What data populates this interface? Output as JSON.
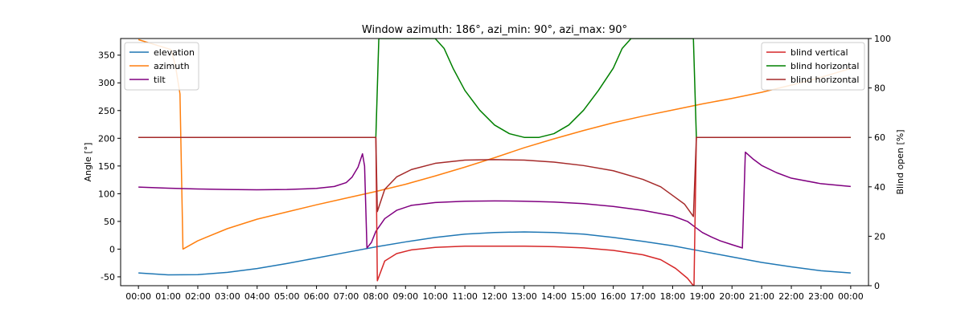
{
  "chart_data": {
    "type": "line",
    "title": "Window azimuth: 186°, azi_min: 90°, azi_max: 90°",
    "xlabel": "",
    "ylabel_left": "Angle [°]",
    "ylabel_right": "Blind open [%]",
    "x_tick_labels": [
      "00:00",
      "01:00",
      "02:00",
      "03:00",
      "04:00",
      "05:00",
      "06:00",
      "07:00",
      "08:00",
      "09:00",
      "10:00",
      "11:00",
      "12:00",
      "13:00",
      "14:00",
      "15:00",
      "16:00",
      "17:00",
      "18:00",
      "19:00",
      "20:00",
      "21:00",
      "22:00",
      "23:00",
      "00:00"
    ],
    "xlim_hours": [
      -0.6,
      24.6
    ],
    "ylim_left": [
      -66,
      380
    ],
    "ylim_right": [
      0,
      100
    ],
    "yticks_left": [
      -50,
      0,
      50,
      100,
      150,
      200,
      250,
      300,
      350
    ],
    "yticks_right": [
      0,
      20,
      40,
      60,
      80,
      100
    ],
    "grid": false,
    "legend_left": {
      "placement": "top-left",
      "entries": [
        "elevation",
        "azimuth",
        "tilt"
      ]
    },
    "legend_right": {
      "placement": "top-right",
      "entries": [
        "blind vertical",
        "blind horizontal",
        "blind horizontal"
      ]
    },
    "series": [
      {
        "name": "elevation",
        "axis": "left",
        "color": "#1f77b4",
        "points": [
          [
            0,
            -43
          ],
          [
            1,
            -46.5
          ],
          [
            2,
            -46
          ],
          [
            3,
            -42
          ],
          [
            4,
            -35
          ],
          [
            5,
            -26
          ],
          [
            6,
            -16
          ],
          [
            7,
            -6
          ],
          [
            8,
            4
          ],
          [
            9,
            13
          ],
          [
            10,
            21
          ],
          [
            11,
            27
          ],
          [
            12,
            30
          ],
          [
            13,
            31
          ],
          [
            14,
            30
          ],
          [
            15,
            27
          ],
          [
            16,
            21
          ],
          [
            17,
            14
          ],
          [
            18,
            6
          ],
          [
            19,
            -4
          ],
          [
            20,
            -14
          ],
          [
            21,
            -24
          ],
          [
            22,
            -32
          ],
          [
            23,
            -39
          ],
          [
            24,
            -43
          ]
        ]
      },
      {
        "name": "azimuth",
        "axis": "left",
        "color": "#ff7f0e",
        "points": [
          [
            0,
            378
          ],
          [
            1.1,
            360
          ],
          [
            1.25,
            330
          ],
          [
            1.4,
            280
          ],
          [
            1.5,
            0
          ],
          [
            2,
            15
          ],
          [
            3,
            37
          ],
          [
            4,
            54
          ],
          [
            5,
            67
          ],
          [
            6,
            80
          ],
          [
            7,
            92
          ],
          [
            8,
            104
          ],
          [
            9,
            117
          ],
          [
            10,
            132
          ],
          [
            11,
            148
          ],
          [
            12,
            165
          ],
          [
            13,
            183
          ],
          [
            14,
            199
          ],
          [
            15,
            214
          ],
          [
            16,
            228
          ],
          [
            17,
            240
          ],
          [
            18,
            251
          ],
          [
            19,
            262
          ],
          [
            20,
            272
          ],
          [
            21,
            283
          ],
          [
            22,
            296
          ],
          [
            23,
            310
          ],
          [
            24,
            326
          ]
        ]
      },
      {
        "name": "tilt",
        "axis": "left",
        "color": "#800080",
        "points": [
          [
            0,
            112
          ],
          [
            1,
            110
          ],
          [
            2,
            108.5
          ],
          [
            3,
            107.5
          ],
          [
            4,
            107
          ],
          [
            5,
            107.5
          ],
          [
            6,
            109.5
          ],
          [
            6.6,
            113
          ],
          [
            7,
            120
          ],
          [
            7.2,
            130
          ],
          [
            7.4,
            148
          ],
          [
            7.55,
            172
          ],
          [
            7.62,
            150
          ],
          [
            7.7,
            2
          ],
          [
            7.85,
            12
          ],
          [
            8.0,
            32
          ],
          [
            8.3,
            55
          ],
          [
            8.7,
            70
          ],
          [
            9.2,
            79
          ],
          [
            10,
            84
          ],
          [
            11,
            86.5
          ],
          [
            12,
            87
          ],
          [
            13,
            86.5
          ],
          [
            14,
            85
          ],
          [
            15,
            82
          ],
          [
            16,
            77
          ],
          [
            17,
            70
          ],
          [
            18,
            60
          ],
          [
            18.5,
            50
          ],
          [
            18.8,
            38
          ],
          [
            19.0,
            30
          ],
          [
            19.3,
            22
          ],
          [
            19.6,
            15
          ],
          [
            20.0,
            8
          ],
          [
            20.3,
            3
          ],
          [
            20.35,
            2
          ],
          [
            20.45,
            175
          ],
          [
            20.7,
            163
          ],
          [
            21,
            151
          ],
          [
            21.5,
            138
          ],
          [
            22,
            128
          ],
          [
            23,
            118
          ],
          [
            24,
            113
          ]
        ]
      },
      {
        "name": "blind vertical",
        "axis": "right",
        "color": "#d62728",
        "points": [
          [
            0,
            60
          ],
          [
            8.0,
            60
          ],
          [
            8.05,
            2
          ],
          [
            8.3,
            10
          ],
          [
            8.7,
            13
          ],
          [
            9.2,
            14.5
          ],
          [
            10,
            15.5
          ],
          [
            11,
            16
          ],
          [
            12,
            16
          ],
          [
            13,
            16
          ],
          [
            14,
            15.8
          ],
          [
            15,
            15.3
          ],
          [
            16,
            14.3
          ],
          [
            17,
            12.5
          ],
          [
            17.6,
            10.5
          ],
          [
            18.1,
            7
          ],
          [
            18.5,
            3
          ],
          [
            18.7,
            0
          ],
          [
            18.72,
            0
          ],
          [
            18.8,
            60
          ],
          [
            24,
            60
          ]
        ]
      },
      {
        "name": "blind horizontal",
        "axis": "right",
        "color": "#008000",
        "points": [
          [
            0,
            60
          ],
          [
            8.0,
            60
          ],
          [
            8.1,
            100
          ],
          [
            9.5,
            100
          ],
          [
            10,
            100
          ],
          [
            10.3,
            96
          ],
          [
            10.6,
            88
          ],
          [
            11,
            79
          ],
          [
            11.5,
            71
          ],
          [
            12,
            65
          ],
          [
            12.5,
            61.5
          ],
          [
            13,
            60
          ],
          [
            13.5,
            60
          ],
          [
            14,
            61.5
          ],
          [
            14.5,
            65
          ],
          [
            15,
            71
          ],
          [
            15.5,
            79
          ],
          [
            16,
            88
          ],
          [
            16.3,
            96
          ],
          [
            16.6,
            100
          ],
          [
            18.7,
            100
          ],
          [
            18.8,
            60
          ],
          [
            24,
            60
          ]
        ]
      },
      {
        "name": "blind horizontal",
        "axis": "right",
        "color": "#a52a2a",
        "points": [
          [
            0,
            60
          ],
          [
            8.0,
            60
          ],
          [
            8.05,
            30
          ],
          [
            8.3,
            39
          ],
          [
            8.7,
            44
          ],
          [
            9.2,
            47
          ],
          [
            10,
            49.5
          ],
          [
            11,
            50.8
          ],
          [
            12,
            51
          ],
          [
            13,
            50.8
          ],
          [
            14,
            50
          ],
          [
            15,
            48.6
          ],
          [
            16,
            46.5
          ],
          [
            17,
            43
          ],
          [
            17.6,
            40
          ],
          [
            18.0,
            36.5
          ],
          [
            18.4,
            33
          ],
          [
            18.7,
            28
          ],
          [
            18.8,
            60
          ],
          [
            24,
            60
          ]
        ]
      }
    ]
  }
}
